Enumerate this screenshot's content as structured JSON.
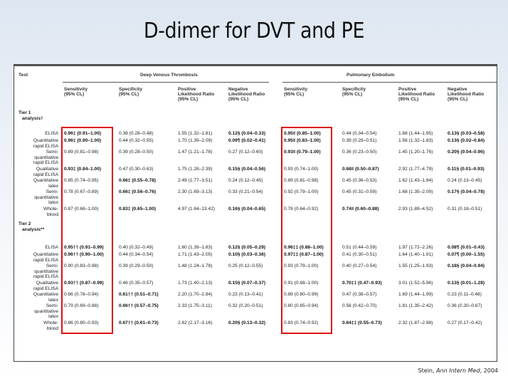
{
  "slide": {
    "title": "D-dimer for DVT and PE",
    "citation": {
      "author": "Stein,",
      "journal": "Ann Intern Med",
      "year": ", 2004"
    }
  },
  "table": {
    "header": {
      "test": "Test",
      "dvt_group": "Deep Venous Thrombosis",
      "pe_group": "Pulmonary Embolism",
      "columns": [
        [
          "Sensitivity",
          "(95% CL)"
        ],
        [
          "Specificity",
          "(95% CL)"
        ],
        [
          "Positive",
          "Likelihood Ratio",
          "(95% CL)"
        ],
        [
          "Negative",
          "Likelihood Ratio",
          "(95% CL)"
        ]
      ]
    },
    "tier1_label": [
      "Tier 1",
      "analysis†"
    ],
    "tier2_label": [
      "Tier 2",
      "analysis**"
    ],
    "tier1": [
      {
        "test": [
          "ELISA"
        ],
        "dvt": [
          [
            "0.96‡ (0.91–1.00)",
            true
          ],
          [
            "0.38 (0.28–0.48)",
            false
          ],
          [
            "1.55 (1.32–1.81)",
            false
          ],
          [
            "0.12§ (0.04–0.33)",
            true
          ]
        ],
        "pe": [
          [
            "0.95‖ (0.85–1.00)",
            true
          ],
          [
            "0.44 (0.34–0.54)",
            false
          ],
          [
            "1.68 (1.44–1.95)",
            false
          ],
          [
            "0.13§ (0.03–0.58)",
            true
          ]
        ]
      },
      {
        "test": [
          "Quantitative",
          "rapid ELISA"
        ],
        "dvt": [
          [
            "0.96‡ (0.90–1.00)",
            true
          ],
          [
            "0.44 (0.32–0.55)",
            false
          ],
          [
            "1.70 (1.39–2.09)",
            false
          ],
          [
            "0.09¶ (0.02–0.41)",
            true
          ]
        ],
        "pe": [
          [
            "0.95‖ (0.83–1.00)",
            true
          ],
          [
            "0.39 (0.28–0.51)",
            false
          ],
          [
            "1.56 (1.32–1.83)",
            false
          ],
          [
            "0.13§ (0.02–0.84)",
            true
          ]
        ]
      },
      {
        "test": [
          "Semi-",
          "quantitative",
          "rapid ELISA"
        ],
        "dvt": [
          [
            "0.89 (0.81–0.98)",
            false
          ],
          [
            "0.39 (0.28–0.50)",
            false
          ],
          [
            "1.47 (1.21–1.78)",
            false
          ],
          [
            "0.27 (0.12–0.60)",
            false
          ]
        ],
        "pe": [
          [
            "0.93‖ (0.79–1.00)",
            true
          ],
          [
            "0.36 (0.23–0.50)",
            false
          ],
          [
            "1.45 (1.20–1.76)",
            false
          ],
          [
            "0.20§ (0.04–0.96)",
            true
          ]
        ]
      },
      {
        "test": [
          "Qualitative",
          "rapid ELISA"
        ],
        "dvt": [
          [
            "0.93‡ (0.84–1.00)",
            true
          ],
          [
            "0.47 (0.30–0.63)",
            false
          ],
          [
            "1.75 (1.28–2.39)",
            false
          ],
          [
            "0.15§ (0.04–0.56)",
            true
          ]
        ],
        "pe": [
          [
            "0.93 (0.74–1.00)",
            false
          ],
          [
            "0.68‖ (0.50–0.87)",
            true
          ],
          [
            "2.92 (1.77–4.79)",
            false
          ],
          [
            "0.11§ (0.01–0.93)",
            true
          ]
        ]
      },
      {
        "test": [
          "Quantitative",
          "latex"
        ],
        "dvt": [
          [
            "0.85 (0.74–0.95)",
            false
          ],
          [
            "0.66‡ (0.55–0.78)",
            true
          ],
          [
            "2.49 (1.77–3.51)",
            false
          ],
          [
            "0.24 (0.12–0.45)",
            false
          ]
        ],
        "pe": [
          [
            "0.89 (0.81–0.98)",
            false
          ],
          [
            "0.45 (0.36–0.53)",
            false
          ],
          [
            "1.62 (1.43–1.84)",
            false
          ],
          [
            "0.24 (0.13–0.45)",
            false
          ]
        ]
      },
      {
        "test": [
          "Semi-",
          "quantitative",
          "latex"
        ],
        "dvt": [
          [
            "0.78 (0.67–0.89)",
            false
          ],
          [
            "0.66‡ (0.56–0.76)",
            true
          ],
          [
            "2.30 (1.69–3.13)",
            false
          ],
          [
            "0.33 (0.21–0.54)",
            false
          ]
        ],
        "pe": [
          [
            "0.92 (0.79–1.00)",
            false
          ],
          [
            "0.45 (0.31–0.59)",
            false
          ],
          [
            "1.68 (1.35–2.09)",
            false
          ],
          [
            "0.17§ (0.04–0.78)",
            true
          ]
        ]
      },
      {
        "test": [
          "Whole-",
          "blood"
        ],
        "dvt": [
          [
            "0.87 (0.68–1.00)",
            false
          ],
          [
            "0.83‡ (0.65–1.00)",
            true
          ],
          [
            "4.97 (1.84–13.42)",
            false
          ],
          [
            "0.16§ (0.04–0.65)",
            true
          ]
        ],
        "pe": [
          [
            "0.78 (0.64–0.92)",
            false
          ],
          [
            "0.74‖ (0.60–0.88)",
            true
          ],
          [
            "2.93 (1.89–4.52)",
            false
          ],
          [
            "0.31 (0.18–0.51)",
            false
          ]
        ]
      }
    ],
    "tier2": [
      {
        "test": [
          "ELISA"
        ],
        "dvt": [
          [
            "0.95†† (0.91–0.99)",
            true
          ],
          [
            "0.40 (0.32–0.49)",
            false
          ],
          [
            "1.60 (1.39–1.83)",
            false
          ],
          [
            "0.12§ (0.05–0.29)",
            true
          ]
        ],
        "pe": [
          [
            "0.96‡‡ (0.88–1.00)",
            true
          ],
          [
            "0.51 (0.44–0.59)",
            false
          ],
          [
            "1.97 (1.72–2.26)",
            false
          ],
          [
            "0.08¶ (0.01–0.43)",
            true
          ]
        ]
      },
      {
        "test": [
          "Quantitative",
          "rapid ELISA"
        ],
        "dvt": [
          [
            "0.96†† (0.90–1.00)",
            true
          ],
          [
            "0.44 (0.34–0.54)",
            false
          ],
          [
            "1.71 (1.43–2.05)",
            false
          ],
          [
            "0.10§ (0.03–0.36)",
            true
          ]
        ],
        "pe": [
          [
            "0.97‡‡ (0.87–1.00)",
            true
          ],
          [
            "0.41 (0.30–0.51)",
            false
          ],
          [
            "1.64 (1.40–1.91)",
            false
          ],
          [
            "0.07¶ (0.00–1.55)",
            true
          ]
        ]
      },
      {
        "test": [
          "Semi-",
          "quantitative",
          "rapid ELISA"
        ],
        "dvt": [
          [
            "0.90 (0.83–0.98)",
            false
          ],
          [
            "0.39 (0.29–0.50)",
            false
          ],
          [
            "1.48 (1.24–1.78)",
            false
          ],
          [
            "0.25 (0.12–0.55)",
            false
          ]
        ],
        "pe": [
          [
            "0.93 (0.79–1.00)",
            false
          ],
          [
            "0.40 (0.27–0.54)",
            false
          ],
          [
            "1.55 (1.25–1.93)",
            false
          ],
          [
            "0.18§ (0.04–0.94)",
            true
          ]
        ]
      },
      {
        "test": [
          "Qualitative",
          "rapid ELISA"
        ],
        "dvt": [
          [
            "0.93†† (0.87–0.99)",
            true
          ],
          [
            "0.46 (0.35–0.57)",
            false
          ],
          [
            "1.73 (1.40–2.13)",
            false
          ],
          [
            "0.15§ (0.07–0.37)",
            true
          ]
        ],
        "pe": [
          [
            "0.91 (0.68–1.00)",
            false
          ],
          [
            "0.70‡‡ (0.47–0.93)",
            true
          ],
          [
            "3.01 (1.52–5.96)",
            false
          ],
          [
            "0.13§ (0.01–1.28)",
            true
          ]
        ]
      },
      {
        "test": [
          "Quantitative",
          "latex"
        ],
        "dvt": [
          [
            "0.86 (0.78–0.94)",
            false
          ],
          [
            "0.61†† (0.51–0.71)",
            true
          ],
          [
            "2.20 (1.70–2.84)",
            false
          ],
          [
            "0.23 (0.13–0.41)",
            false
          ]
        ],
        "pe": [
          [
            "0.89 (0.80–0.99)",
            false
          ],
          [
            "0.47 (0.38–0.57)",
            false
          ],
          [
            "1.69 (1.44–1.99)",
            false
          ],
          [
            "0.23 (0.11–0.48)",
            false
          ]
        ]
      },
      {
        "test": [
          "Semi-",
          "quantitative",
          "latex"
        ],
        "dvt": [
          [
            "0.79 (0.69–0.88)",
            false
          ],
          [
            "0.66†† (0.57–0.75)",
            true
          ],
          [
            "2.33 (1.75–3.11)",
            false
          ],
          [
            "0.32 (0.20–0.51)",
            false
          ]
        ],
        "pe": [
          [
            "0.80 (0.65–0.94)",
            false
          ],
          [
            "0.56 (0.42–0.70)",
            false
          ],
          [
            "1.81 (1.35–2.42)",
            false
          ],
          [
            "0.36 (0.20–0.67)",
            false
          ]
        ]
      },
      {
        "test": [
          "Whole-",
          "blood"
        ],
        "dvt": [
          [
            "0.86 (0.80–0.93)",
            false
          ],
          [
            "0.67†† (0.61–0.73)",
            true
          ],
          [
            "2.62 (2.17–3.16)",
            false
          ],
          [
            "0.20§ (0.13–0.32)",
            true
          ]
        ],
        "pe": [
          [
            "0.83 (0.74–0.92)",
            false
          ],
          [
            "0.64‡‡ (0.55–0.73)",
            true
          ],
          [
            "2.32 (1.87–2.88)",
            false
          ],
          [
            "0.27 (0.17–0.42)",
            false
          ]
        ]
      }
    ]
  },
  "highlight": {
    "color": "#e01010",
    "boxes": [
      "dvt-sensitivity",
      "pe-sensitivity"
    ]
  }
}
